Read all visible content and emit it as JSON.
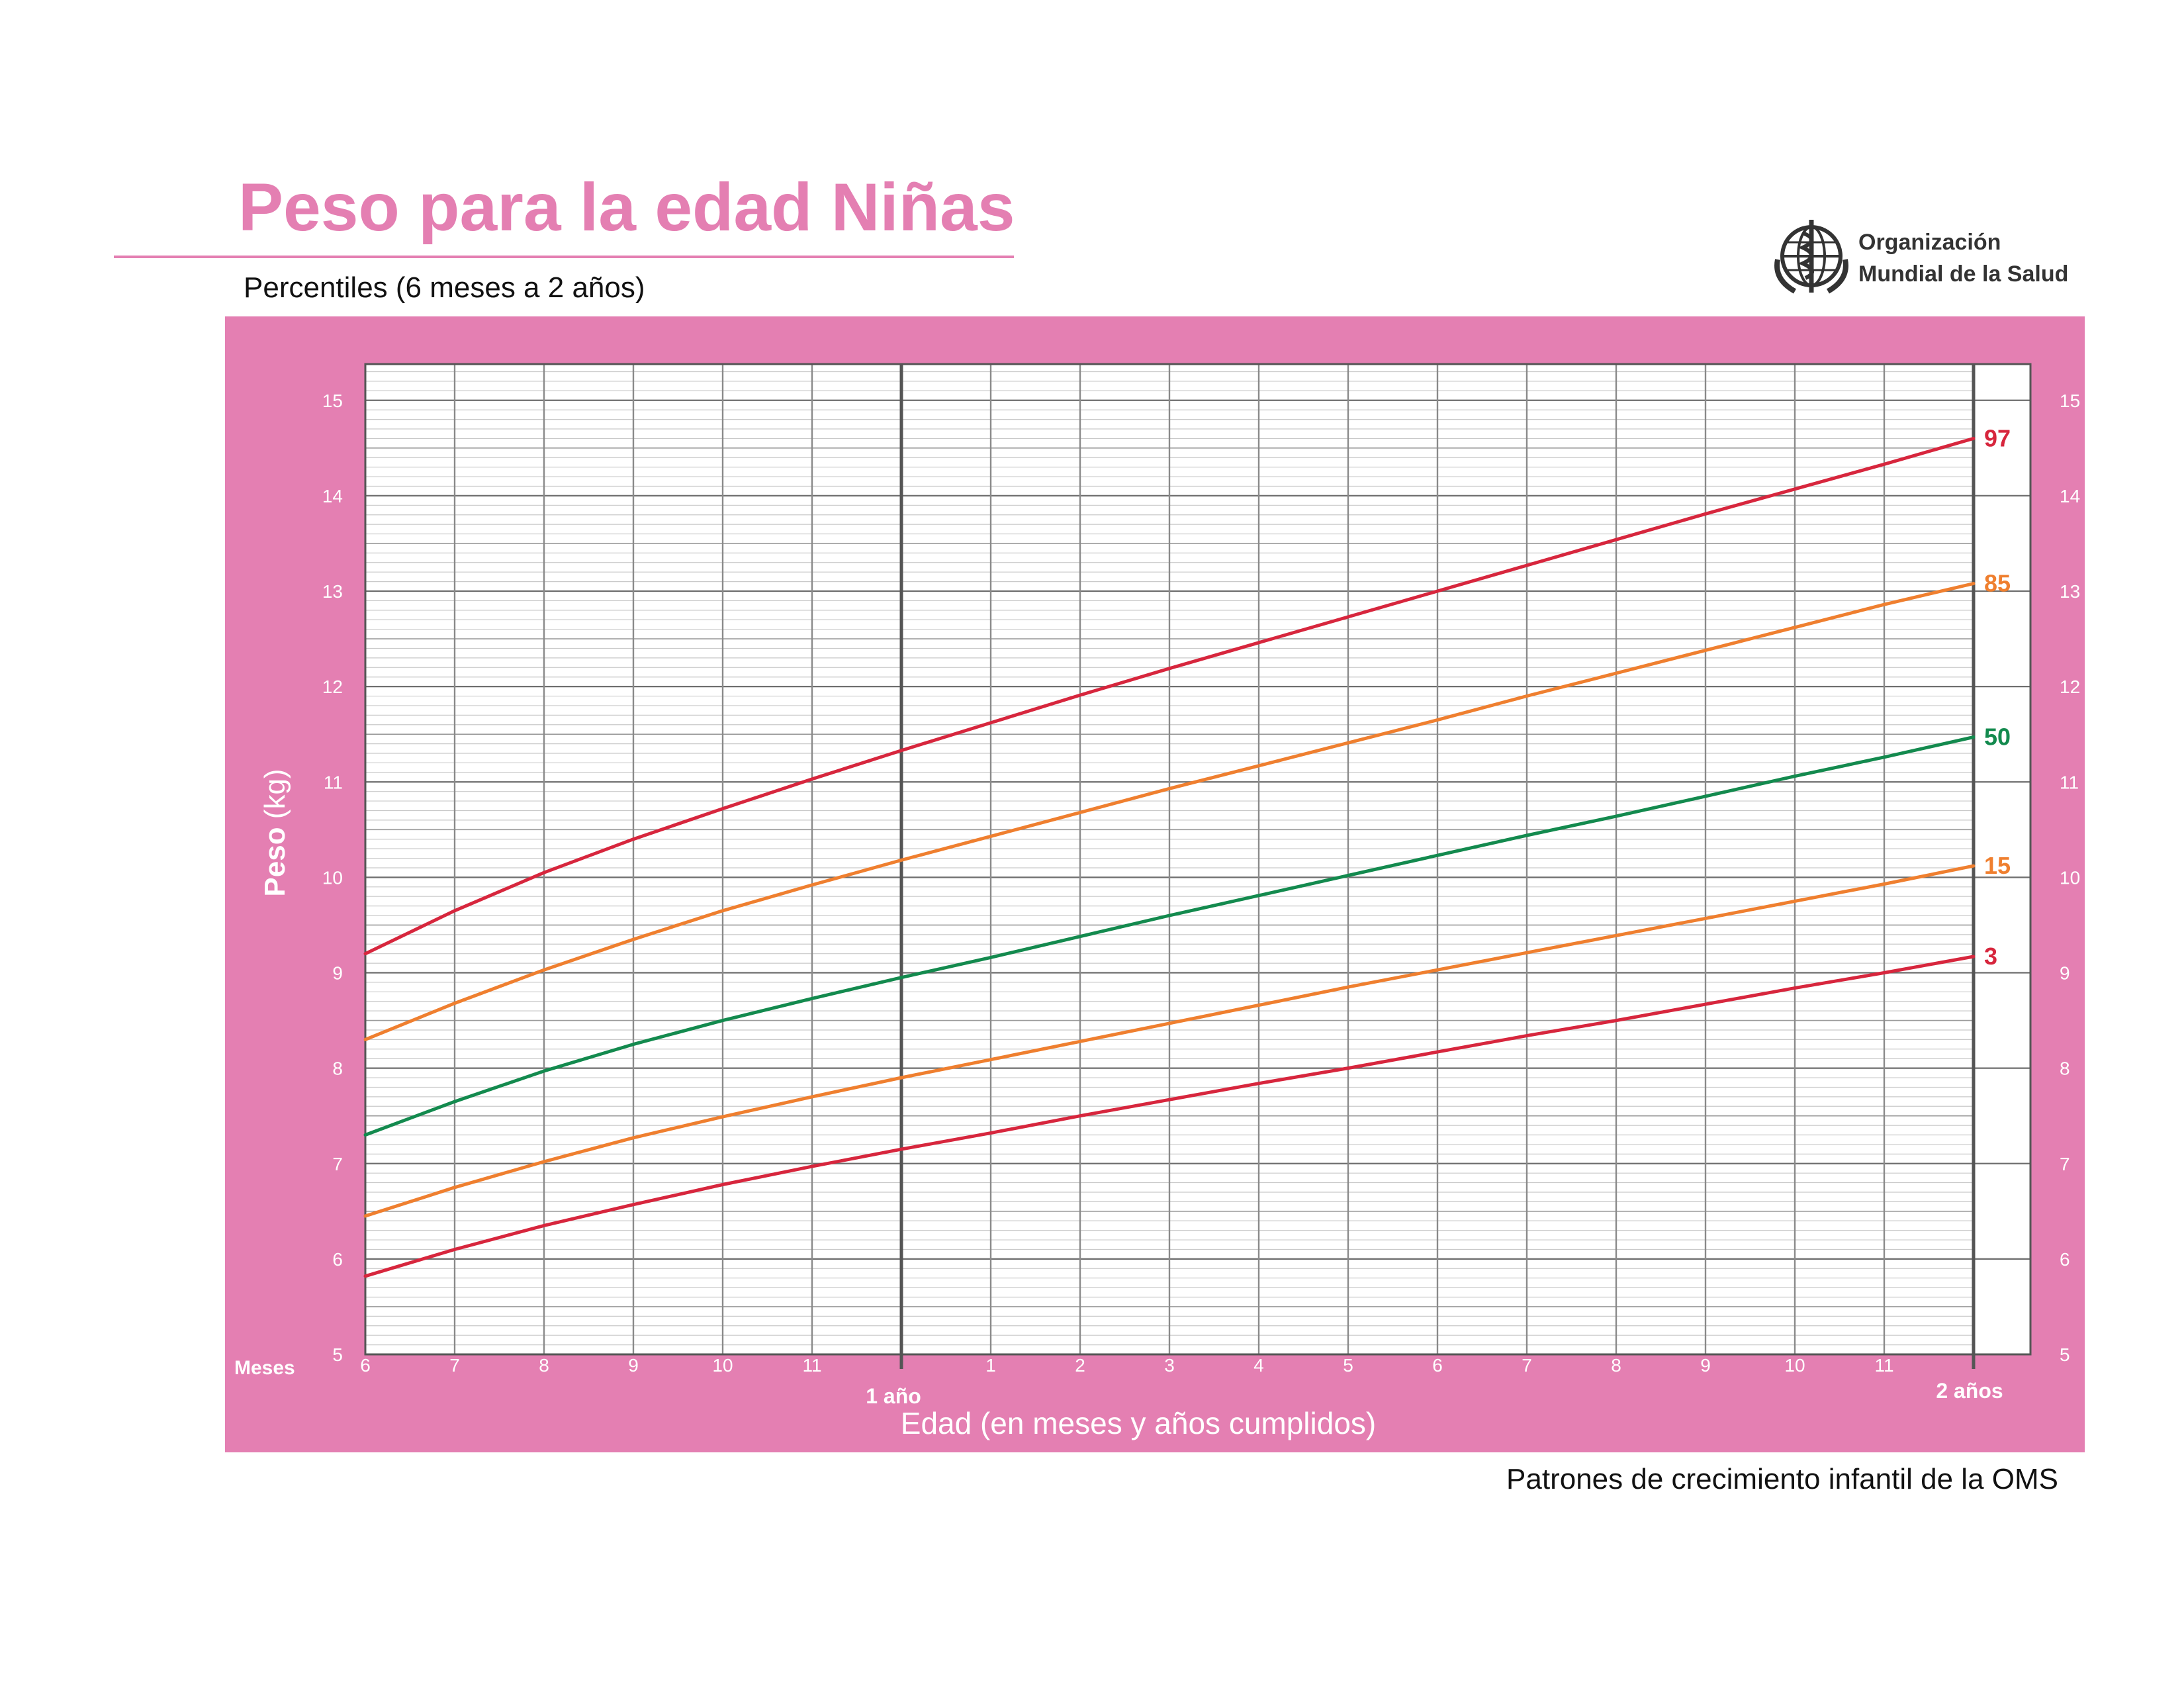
{
  "header": {
    "title": "Peso para la edad Niñas",
    "subtitle": "Percentiles (6 meses a 2 años)"
  },
  "logo": {
    "icon": "who-emblem-icon",
    "line1": "Organización",
    "line2": "Mundial de la Salud"
  },
  "footer": {
    "source": "Patrones de crecimiento infantil de la OMS"
  },
  "colors": {
    "panel": "#e47fb2",
    "red": "#d7263d",
    "orange": "#ef7f2f",
    "green": "#138a4e"
  },
  "chart_data": {
    "type": "line",
    "ylabel_main": "Peso",
    "ylabel_unit": "(kg)",
    "xlabel": "Edad (en meses y años cumplidos)",
    "x_unit_label": "Meses",
    "x_year_labels": [
      "1 año",
      "2 años"
    ],
    "x_tick_labels": [
      "6",
      "7",
      "8",
      "9",
      "10",
      "11",
      "",
      "1",
      "2",
      "3",
      "4",
      "5",
      "6",
      "7",
      "8",
      "9",
      "10",
      "11",
      ""
    ],
    "x_range_months": [
      6,
      24
    ],
    "ylim": [
      5,
      15
    ],
    "y_ticks": [
      5,
      6,
      7,
      8,
      9,
      10,
      11,
      12,
      13,
      14,
      15
    ],
    "grid": true,
    "x": [
      6,
      7,
      8,
      9,
      10,
      11,
      12,
      13,
      14,
      15,
      16,
      17,
      18,
      19,
      20,
      21,
      22,
      23,
      24
    ],
    "series": [
      {
        "name": "97",
        "color": "#d7263d",
        "values": [
          9.2,
          9.65,
          10.05,
          10.4,
          10.72,
          11.03,
          11.33,
          11.62,
          11.91,
          12.19,
          12.46,
          12.73,
          13.0,
          13.27,
          13.54,
          13.81,
          14.07,
          14.33,
          14.6
        ]
      },
      {
        "name": "85",
        "color": "#ef7f2f",
        "values": [
          8.3,
          8.68,
          9.03,
          9.35,
          9.65,
          9.92,
          10.18,
          10.43,
          10.68,
          10.93,
          11.17,
          11.41,
          11.65,
          11.9,
          12.14,
          12.38,
          12.62,
          12.86,
          13.08
        ]
      },
      {
        "name": "50",
        "color": "#138a4e",
        "values": [
          7.3,
          7.65,
          7.97,
          8.25,
          8.5,
          8.73,
          8.95,
          9.16,
          9.38,
          9.6,
          9.81,
          10.02,
          10.23,
          10.44,
          10.64,
          10.85,
          11.06,
          11.26,
          11.47
        ]
      },
      {
        "name": "15",
        "color": "#ef7f2f",
        "values": [
          6.45,
          6.75,
          7.02,
          7.27,
          7.49,
          7.7,
          7.9,
          8.09,
          8.28,
          8.47,
          8.66,
          8.85,
          9.03,
          9.21,
          9.39,
          9.57,
          9.75,
          9.93,
          10.12
        ]
      },
      {
        "name": "3",
        "color": "#d7263d",
        "values": [
          5.82,
          6.1,
          6.35,
          6.57,
          6.78,
          6.97,
          7.15,
          7.32,
          7.5,
          7.67,
          7.84,
          8.0,
          8.17,
          8.34,
          8.5,
          8.67,
          8.84,
          9.0,
          9.17
        ]
      }
    ]
  }
}
